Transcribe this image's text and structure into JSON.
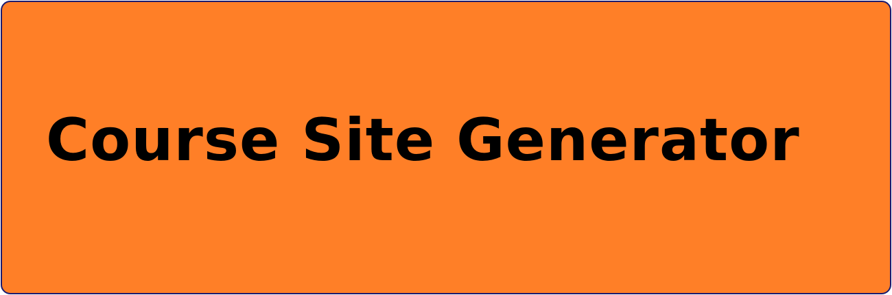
{
  "banner": {
    "title": "Course Site Generator",
    "background_color": "#ff7f27",
    "border_color": "#1a1a6e",
    "text_color": "#000000"
  }
}
